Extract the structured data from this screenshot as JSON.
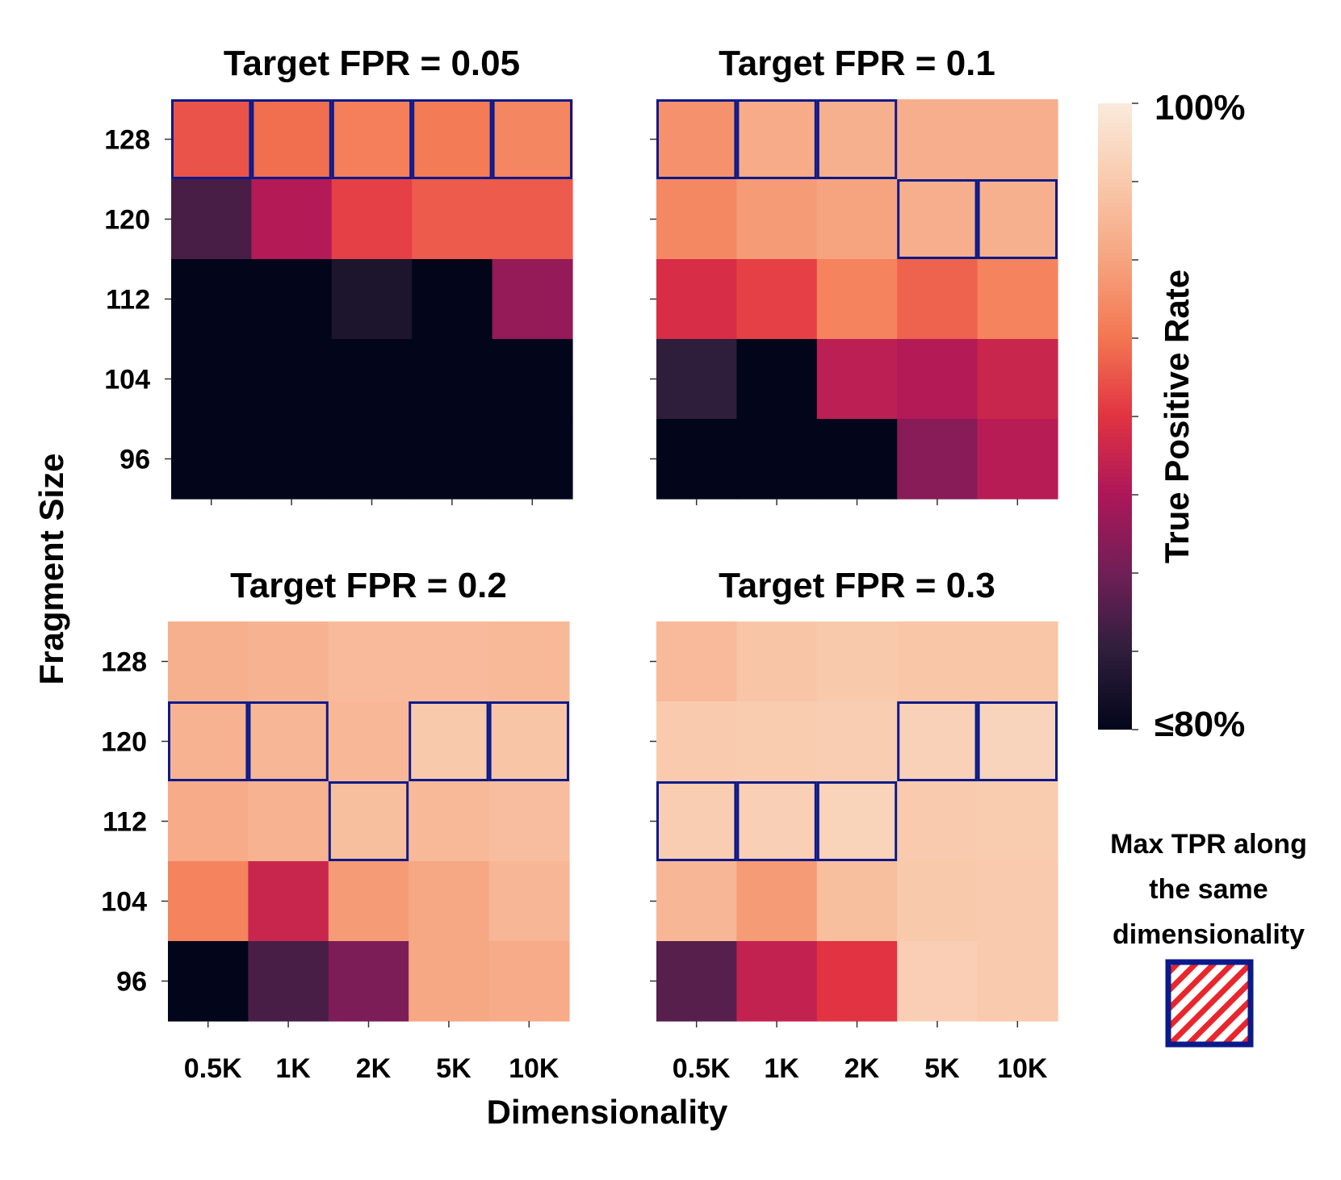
{
  "chart_data": {
    "type": "heatmap",
    "xlabel": "Dimensionality",
    "ylabel": "Fragment Size",
    "x_categories": [
      "0.5K",
      "1K",
      "2K",
      "5K",
      "10K"
    ],
    "y_categories": [
      "128",
      "120",
      "112",
      "104",
      "96"
    ],
    "colorbar": {
      "label": "True Positive Rate",
      "min_label": "≤80%",
      "max_label": "100%",
      "range": [
        0.8,
        1.0
      ],
      "colormap": "rocket"
    },
    "legend": {
      "lines": [
        "Max TPR along",
        "the same",
        "dimensionality"
      ],
      "placement": "right"
    },
    "panels": [
      {
        "title": "Target FPR = 0.05",
        "values": [
          [
            0.912,
            0.922,
            0.93,
            0.928,
            0.934
          ],
          [
            0.835,
            0.878,
            0.905,
            0.915,
            0.915
          ],
          [
            0.8,
            0.8,
            0.815,
            0.8,
            0.865
          ],
          [
            0.8,
            0.8,
            0.8,
            0.8,
            0.8
          ],
          [
            0.8,
            0.8,
            0.8,
            0.8,
            0.8
          ]
        ],
        "highlight": [
          [
            0,
            0
          ],
          [
            0,
            1
          ],
          [
            0,
            2
          ],
          [
            0,
            3
          ],
          [
            0,
            4
          ]
        ]
      },
      {
        "title": "Target FPR = 0.1",
        "values": [
          [
            0.94,
            0.955,
            0.958,
            0.957,
            0.957
          ],
          [
            0.935,
            0.945,
            0.95,
            0.957,
            0.958
          ],
          [
            0.895,
            0.905,
            0.932,
            0.918,
            0.932
          ],
          [
            0.825,
            0.8,
            0.882,
            0.878,
            0.888
          ],
          [
            0.8,
            0.8,
            0.8,
            0.86,
            0.88
          ]
        ],
        "highlight": [
          [
            0,
            0
          ],
          [
            0,
            1
          ],
          [
            0,
            2
          ],
          [
            1,
            3
          ],
          [
            1,
            4
          ]
        ]
      },
      {
        "title": "Target FPR = 0.2",
        "values": [
          [
            0.958,
            0.96,
            0.965,
            0.965,
            0.964
          ],
          [
            0.96,
            0.962,
            0.963,
            0.975,
            0.972
          ],
          [
            0.955,
            0.96,
            0.968,
            0.964,
            0.967
          ],
          [
            0.932,
            0.888,
            0.945,
            0.952,
            0.962
          ],
          [
            0.8,
            0.835,
            0.855,
            0.952,
            0.955
          ]
        ],
        "highlight": [
          [
            1,
            0
          ],
          [
            1,
            1
          ],
          [
            2,
            2
          ],
          [
            1,
            3
          ],
          [
            1,
            4
          ]
        ]
      },
      {
        "title": "Target FPR = 0.3",
        "values": [
          [
            0.965,
            0.972,
            0.975,
            0.973,
            0.973
          ],
          [
            0.976,
            0.977,
            0.978,
            0.981,
            0.983
          ],
          [
            0.978,
            0.98,
            0.982,
            0.976,
            0.977
          ],
          [
            0.962,
            0.945,
            0.968,
            0.975,
            0.976
          ],
          [
            0.84,
            0.885,
            0.9,
            0.979,
            0.976
          ]
        ],
        "highlight": [
          [
            2,
            0
          ],
          [
            2,
            1
          ],
          [
            2,
            2
          ],
          [
            1,
            3
          ],
          [
            1,
            4
          ]
        ]
      }
    ]
  }
}
